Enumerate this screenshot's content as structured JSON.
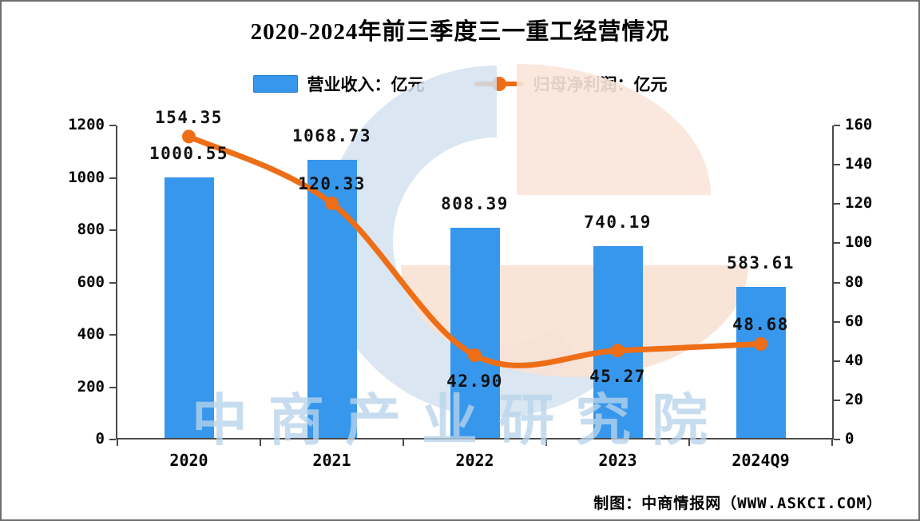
{
  "title": "2020-2024年前三季度三一重工经营情况",
  "legend": {
    "revenue_label": "营业收入：亿元",
    "profit_label": "归母净利润：亿元"
  },
  "chart_data": {
    "type": "bar+line",
    "categories": [
      "2020",
      "2021",
      "2022",
      "2023",
      "2024Q9"
    ],
    "series": [
      {
        "name": "营业收入：亿元",
        "type": "bar",
        "axis": "left",
        "unit": "亿元",
        "values": [
          1000.55,
          1068.73,
          808.39,
          740.19,
          583.61
        ],
        "value_labels": [
          "1000.55",
          "1068.73",
          "808.39",
          "740.19",
          "583.61"
        ],
        "color": "#3797EC"
      },
      {
        "name": "归母净利润：亿元",
        "type": "line",
        "axis": "right",
        "unit": "亿元",
        "values": [
          154.35,
          120.33,
          42.9,
          45.27,
          48.68
        ],
        "value_labels": [
          "154.35",
          "120.33",
          "42.90",
          "45.27",
          "48.68"
        ],
        "label_placement": [
          "above",
          "above",
          "below",
          "below",
          "above"
        ],
        "color": "#ED6E16"
      }
    ],
    "left_axis": {
      "min": 0,
      "max": 1200,
      "tick_labels": [
        "0",
        "200",
        "400",
        "600",
        "800",
        "1000",
        "1200"
      ]
    },
    "right_axis": {
      "min": 0,
      "max": 160,
      "tick_labels": [
        "0",
        "20",
        "40",
        "60",
        "80",
        "100",
        "120",
        "140",
        "160"
      ]
    },
    "grid": false,
    "legend_position": "top-center"
  },
  "watermark": {
    "text": "中商产业研究院"
  },
  "footer": {
    "credit": "制图：中商情报网（WWW.ASKCI.COM）"
  },
  "colors": {
    "bar": "#3797EC",
    "line": "#ED6E16",
    "axis": "#4a4a4a",
    "text": "#111111",
    "watermark_text": "rgba(183,211,235,0.78)",
    "logo_blue": "#D3E2EE",
    "logo_peach": "#F9E5DA",
    "logo_peach2": "#F8E1D4"
  }
}
